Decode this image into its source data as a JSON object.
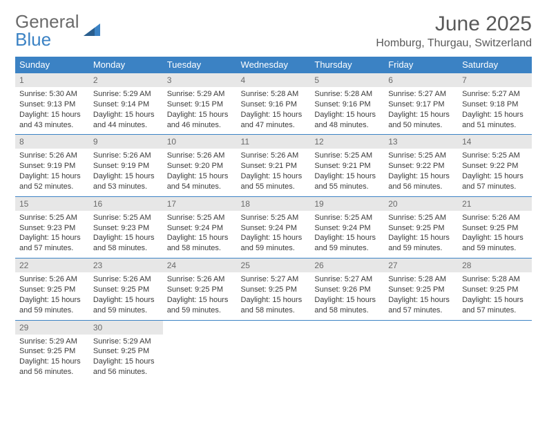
{
  "brand": {
    "part1": "General",
    "part2": "Blue"
  },
  "title": "June 2025",
  "location": "Homburg, Thurgau, Switzerland",
  "colors": {
    "header_bg": "#3b82c4",
    "header_text": "#ffffff",
    "daynum_bg": "#e7e7e7",
    "text": "#3a3a3a",
    "muted": "#6a6a6a",
    "border": "#3b82c4"
  },
  "typography": {
    "title_fontsize": 30,
    "location_fontsize": 16,
    "dayheader_fontsize": 13,
    "daynum_fontsize": 12,
    "cell_fontsize": 11
  },
  "day_headers": [
    "Sunday",
    "Monday",
    "Tuesday",
    "Wednesday",
    "Thursday",
    "Friday",
    "Saturday"
  ],
  "weeks": [
    [
      {
        "n": "1",
        "sr": "5:30 AM",
        "ss": "9:13 PM",
        "d1": "Daylight: 15 hours",
        "d2": "and 43 minutes."
      },
      {
        "n": "2",
        "sr": "5:29 AM",
        "ss": "9:14 PM",
        "d1": "Daylight: 15 hours",
        "d2": "and 44 minutes."
      },
      {
        "n": "3",
        "sr": "5:29 AM",
        "ss": "9:15 PM",
        "d1": "Daylight: 15 hours",
        "d2": "and 46 minutes."
      },
      {
        "n": "4",
        "sr": "5:28 AM",
        "ss": "9:16 PM",
        "d1": "Daylight: 15 hours",
        "d2": "and 47 minutes."
      },
      {
        "n": "5",
        "sr": "5:28 AM",
        "ss": "9:16 PM",
        "d1": "Daylight: 15 hours",
        "d2": "and 48 minutes."
      },
      {
        "n": "6",
        "sr": "5:27 AM",
        "ss": "9:17 PM",
        "d1": "Daylight: 15 hours",
        "d2": "and 50 minutes."
      },
      {
        "n": "7",
        "sr": "5:27 AM",
        "ss": "9:18 PM",
        "d1": "Daylight: 15 hours",
        "d2": "and 51 minutes."
      }
    ],
    [
      {
        "n": "8",
        "sr": "5:26 AM",
        "ss": "9:19 PM",
        "d1": "Daylight: 15 hours",
        "d2": "and 52 minutes."
      },
      {
        "n": "9",
        "sr": "5:26 AM",
        "ss": "9:19 PM",
        "d1": "Daylight: 15 hours",
        "d2": "and 53 minutes."
      },
      {
        "n": "10",
        "sr": "5:26 AM",
        "ss": "9:20 PM",
        "d1": "Daylight: 15 hours",
        "d2": "and 54 minutes."
      },
      {
        "n": "11",
        "sr": "5:26 AM",
        "ss": "9:21 PM",
        "d1": "Daylight: 15 hours",
        "d2": "and 55 minutes."
      },
      {
        "n": "12",
        "sr": "5:25 AM",
        "ss": "9:21 PM",
        "d1": "Daylight: 15 hours",
        "d2": "and 55 minutes."
      },
      {
        "n": "13",
        "sr": "5:25 AM",
        "ss": "9:22 PM",
        "d1": "Daylight: 15 hours",
        "d2": "and 56 minutes."
      },
      {
        "n": "14",
        "sr": "5:25 AM",
        "ss": "9:22 PM",
        "d1": "Daylight: 15 hours",
        "d2": "and 57 minutes."
      }
    ],
    [
      {
        "n": "15",
        "sr": "5:25 AM",
        "ss": "9:23 PM",
        "d1": "Daylight: 15 hours",
        "d2": "and 57 minutes."
      },
      {
        "n": "16",
        "sr": "5:25 AM",
        "ss": "9:23 PM",
        "d1": "Daylight: 15 hours",
        "d2": "and 58 minutes."
      },
      {
        "n": "17",
        "sr": "5:25 AM",
        "ss": "9:24 PM",
        "d1": "Daylight: 15 hours",
        "d2": "and 58 minutes."
      },
      {
        "n": "18",
        "sr": "5:25 AM",
        "ss": "9:24 PM",
        "d1": "Daylight: 15 hours",
        "d2": "and 59 minutes."
      },
      {
        "n": "19",
        "sr": "5:25 AM",
        "ss": "9:24 PM",
        "d1": "Daylight: 15 hours",
        "d2": "and 59 minutes."
      },
      {
        "n": "20",
        "sr": "5:25 AM",
        "ss": "9:25 PM",
        "d1": "Daylight: 15 hours",
        "d2": "and 59 minutes."
      },
      {
        "n": "21",
        "sr": "5:26 AM",
        "ss": "9:25 PM",
        "d1": "Daylight: 15 hours",
        "d2": "and 59 minutes."
      }
    ],
    [
      {
        "n": "22",
        "sr": "5:26 AM",
        "ss": "9:25 PM",
        "d1": "Daylight: 15 hours",
        "d2": "and 59 minutes."
      },
      {
        "n": "23",
        "sr": "5:26 AM",
        "ss": "9:25 PM",
        "d1": "Daylight: 15 hours",
        "d2": "and 59 minutes."
      },
      {
        "n": "24",
        "sr": "5:26 AM",
        "ss": "9:25 PM",
        "d1": "Daylight: 15 hours",
        "d2": "and 59 minutes."
      },
      {
        "n": "25",
        "sr": "5:27 AM",
        "ss": "9:25 PM",
        "d1": "Daylight: 15 hours",
        "d2": "and 58 minutes."
      },
      {
        "n": "26",
        "sr": "5:27 AM",
        "ss": "9:26 PM",
        "d1": "Daylight: 15 hours",
        "d2": "and 58 minutes."
      },
      {
        "n": "27",
        "sr": "5:28 AM",
        "ss": "9:25 PM",
        "d1": "Daylight: 15 hours",
        "d2": "and 57 minutes."
      },
      {
        "n": "28",
        "sr": "5:28 AM",
        "ss": "9:25 PM",
        "d1": "Daylight: 15 hours",
        "d2": "and 57 minutes."
      }
    ],
    [
      {
        "n": "29",
        "sr": "5:29 AM",
        "ss": "9:25 PM",
        "d1": "Daylight: 15 hours",
        "d2": "and 56 minutes."
      },
      {
        "n": "30",
        "sr": "5:29 AM",
        "ss": "9:25 PM",
        "d1": "Daylight: 15 hours",
        "d2": "and 56 minutes."
      },
      null,
      null,
      null,
      null,
      null
    ]
  ],
  "labels": {
    "sunrise": "Sunrise: ",
    "sunset": "Sunset: "
  }
}
